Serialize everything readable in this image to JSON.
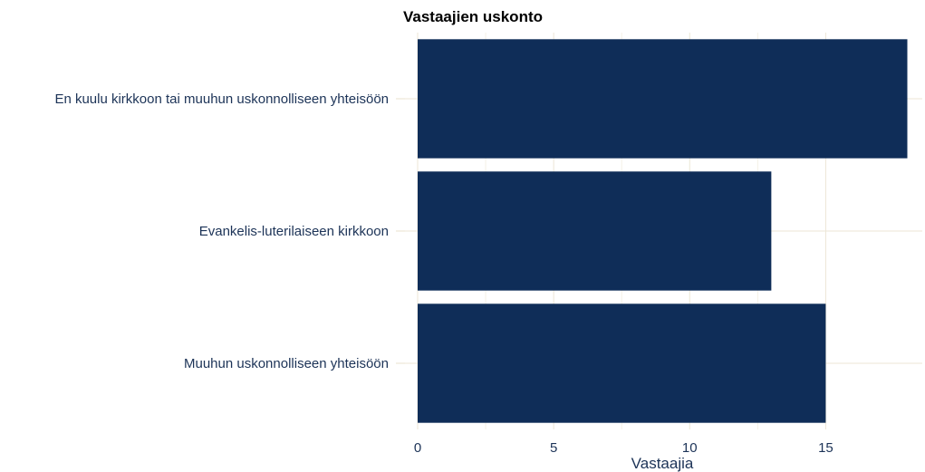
{
  "chart_data": {
    "type": "bar",
    "orientation": "horizontal",
    "title": "Vastaajien uskonto",
    "xlabel": "Vastaajia",
    "ylabel": "",
    "categories": [
      "En kuulu kirkkoon tai muuhun uskonnolliseen yhteisöön",
      "Evankelis-luterilaiseen kirkkoon",
      "Muuhun uskonnolliseen yhteisöön"
    ],
    "values": [
      18,
      13,
      15
    ],
    "xlim": [
      0,
      18
    ],
    "xticks": [
      0,
      5,
      10,
      15
    ],
    "grid": true,
    "legend": "none",
    "colors": {
      "bar": "#0f2d58",
      "text": "#1c3357",
      "grid": "#ece6d6"
    }
  }
}
